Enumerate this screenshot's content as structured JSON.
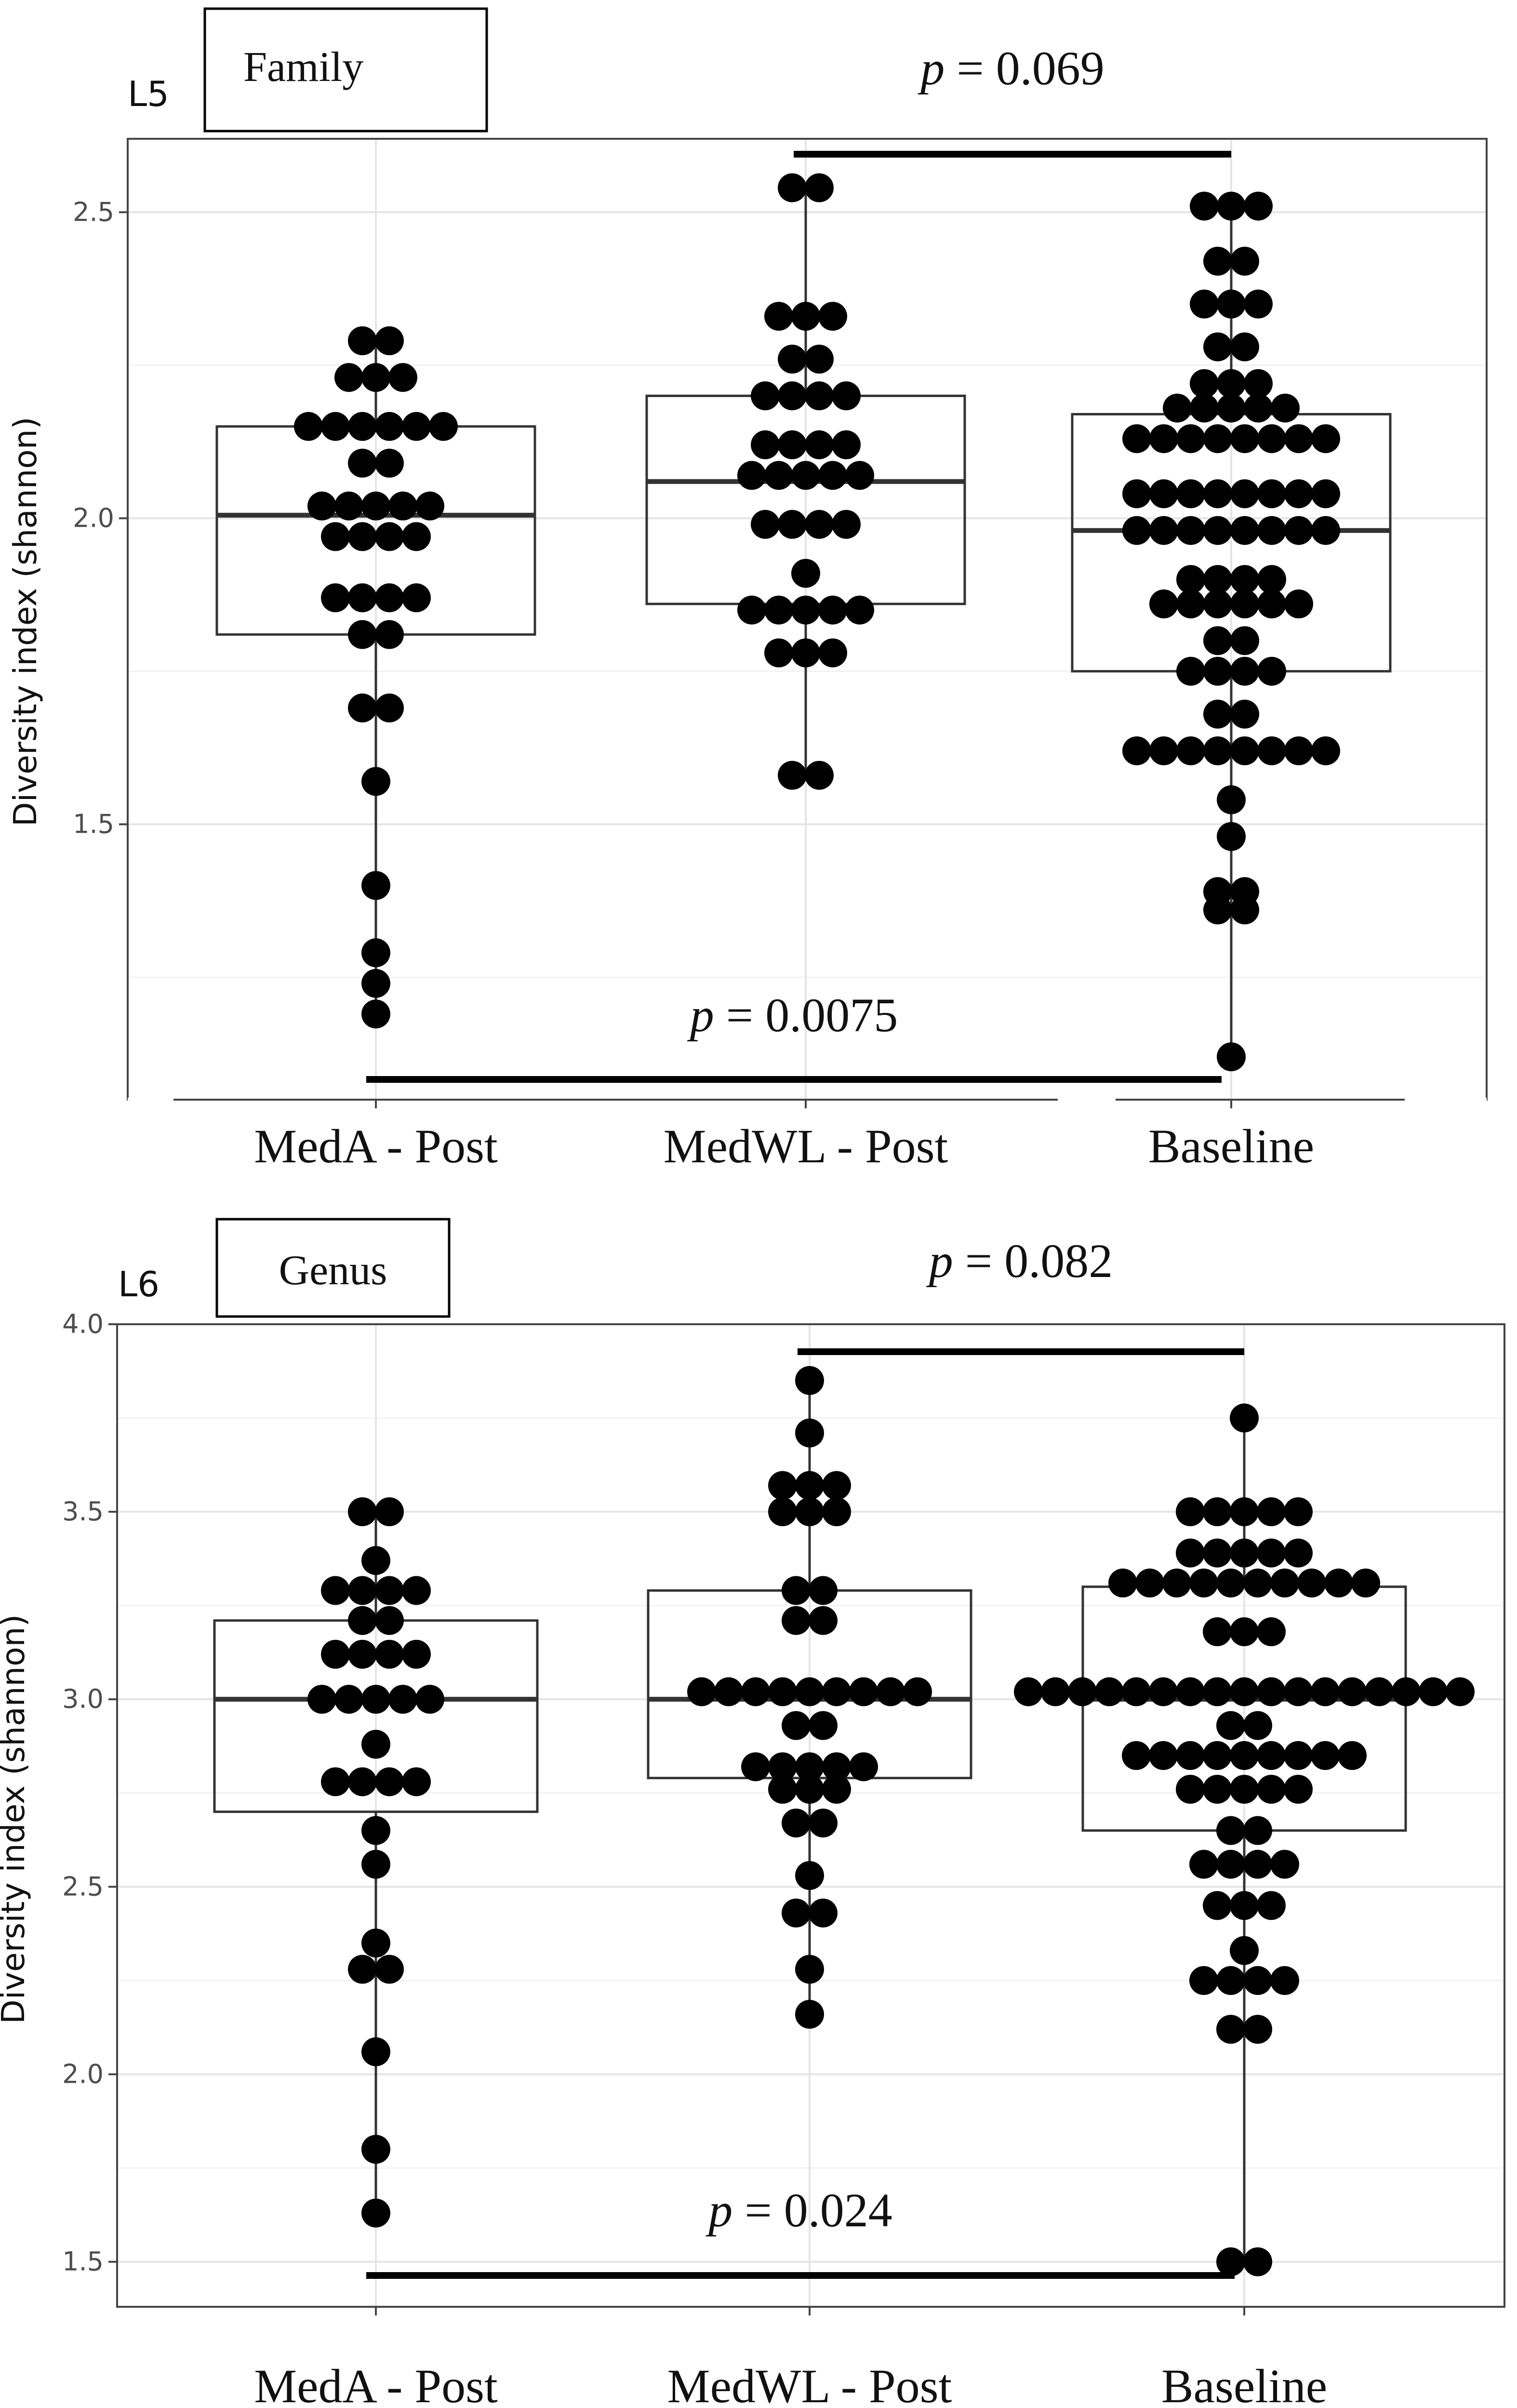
{
  "figure": {
    "panels": [
      {
        "id": "L5",
        "panel_label": "L5",
        "taxon_label": "Family",
        "ylabel": "Diversity index (shannon)",
        "categories": [
          "MedA - Post",
          "MedWL - Post",
          "Baseline"
        ],
        "ylim": [
          1.05,
          2.62
        ],
        "yticks": [
          1.5,
          2.0,
          2.5
        ],
        "ytick_labels": [
          "1.5",
          "2.0",
          "2.5"
        ],
        "grid_major": [
          1.5,
          2.0,
          2.5
        ],
        "grid_minor": [
          1.25,
          1.75,
          2.25
        ],
        "boxes": [
          {
            "category": "MedA - Post",
            "q1": 1.81,
            "median": 2.005,
            "q3": 2.15,
            "whisker_low": 1.19,
            "whisker_high": 2.29
          },
          {
            "category": "MedWL - Post",
            "q1": 1.86,
            "median": 2.06,
            "q3": 2.2,
            "whisker_low": 1.58,
            "whisker_high": 2.54
          },
          {
            "category": "Baseline",
            "q1": 1.75,
            "median": 1.98,
            "q3": 2.17,
            "whisker_low": 1.12,
            "whisker_high": 2.51
          }
        ],
        "points": [
          [
            1.19,
            1.24,
            1.29,
            1.4,
            1.57,
            1.69,
            1.69,
            1.81,
            1.81,
            1.87,
            1.87,
            1.87,
            1.87,
            1.97,
            1.97,
            1.97,
            1.97,
            2.02,
            2.02,
            2.02,
            2.02,
            2.02,
            2.09,
            2.09,
            2.15,
            2.15,
            2.15,
            2.15,
            2.15,
            2.15,
            2.23,
            2.23,
            2.23,
            2.29,
            2.29
          ],
          [
            1.58,
            1.58,
            1.78,
            1.78,
            1.78,
            1.85,
            1.85,
            1.85,
            1.85,
            1.85,
            1.91,
            1.99,
            1.99,
            1.99,
            1.99,
            2.07,
            2.07,
            2.07,
            2.07,
            2.07,
            2.12,
            2.12,
            2.12,
            2.12,
            2.2,
            2.2,
            2.2,
            2.2,
            2.26,
            2.26,
            2.33,
            2.33,
            2.33,
            2.54,
            2.54
          ],
          [
            1.12,
            1.36,
            1.36,
            1.39,
            1.39,
            1.48,
            1.54,
            1.62,
            1.62,
            1.62,
            1.62,
            1.62,
            1.62,
            1.62,
            1.62,
            1.68,
            1.68,
            1.75,
            1.75,
            1.75,
            1.75,
            1.8,
            1.8,
            1.86,
            1.86,
            1.86,
            1.86,
            1.86,
            1.86,
            1.9,
            1.9,
            1.9,
            1.9,
            1.98,
            1.98,
            1.98,
            1.98,
            1.98,
            1.98,
            1.98,
            1.98,
            2.04,
            2.04,
            2.04,
            2.04,
            2.04,
            2.04,
            2.04,
            2.04,
            2.13,
            2.13,
            2.13,
            2.13,
            2.13,
            2.13,
            2.13,
            2.13,
            2.18,
            2.18,
            2.18,
            2.18,
            2.18,
            2.22,
            2.22,
            2.22,
            2.28,
            2.28,
            2.35,
            2.35,
            2.35,
            2.42,
            2.42,
            2.51,
            2.51,
            2.51
          ]
        ],
        "comparisons": [
          {
            "label_italic": "p",
            "label_rest": " = 0.069",
            "from": 1,
            "to": 2,
            "position": "top"
          },
          {
            "label_italic": "p",
            "label_rest": " = 0.0075",
            "from": 0,
            "to": 2,
            "position": "bottom"
          }
        ]
      },
      {
        "id": "L6",
        "panel_label": "L6",
        "taxon_label": "Genus",
        "ylabel": "Diversity index (shannon)",
        "categories": [
          "MedA - Post",
          "MedWL - Post",
          "Baseline"
        ],
        "ylim": [
          1.38,
          4.0
        ],
        "yticks": [
          1.5,
          2.0,
          2.5,
          3.0,
          3.5,
          4.0
        ],
        "ytick_labels": [
          "1.5",
          "2.0",
          "2.5",
          "3.0",
          "3.5",
          "4.0"
        ],
        "grid_major": [
          1.5,
          2.0,
          2.5,
          3.0,
          3.5,
          4.0
        ],
        "grid_minor": [
          1.75,
          2.25,
          2.75,
          3.25,
          3.75
        ],
        "boxes": [
          {
            "category": "MedA - Post",
            "q1": 2.7,
            "median": 3.0,
            "q3": 3.21,
            "whisker_low": 1.63,
            "whisker_high": 3.5
          },
          {
            "category": "MedWL - Post",
            "q1": 2.79,
            "median": 3.0,
            "q3": 3.29,
            "whisker_low": 2.16,
            "whisker_high": 3.85
          },
          {
            "category": "Baseline",
            "q1": 2.65,
            "median": 3.0,
            "q3": 3.3,
            "whisker_low": 1.5,
            "whisker_high": 3.75
          }
        ],
        "points": [
          [
            1.63,
            1.8,
            2.06,
            2.28,
            2.28,
            2.35,
            2.56,
            2.65,
            2.78,
            2.78,
            2.78,
            2.78,
            2.88,
            3.0,
            3.0,
            3.0,
            3.0,
            3.0,
            3.12,
            3.12,
            3.12,
            3.12,
            3.21,
            3.21,
            3.29,
            3.29,
            3.29,
            3.29,
            3.37,
            3.5,
            3.5
          ],
          [
            2.16,
            2.28,
            2.43,
            2.43,
            2.53,
            2.67,
            2.67,
            2.76,
            2.76,
            2.76,
            2.82,
            2.82,
            2.82,
            2.82,
            2.82,
            2.93,
            2.93,
            3.02,
            3.02,
            3.02,
            3.02,
            3.02,
            3.02,
            3.02,
            3.02,
            3.02,
            3.21,
            3.21,
            3.29,
            3.29,
            3.5,
            3.5,
            3.5,
            3.57,
            3.57,
            3.57,
            3.71,
            3.85
          ],
          [
            1.5,
            1.5,
            2.12,
            2.12,
            2.25,
            2.25,
            2.25,
            2.25,
            2.33,
            2.45,
            2.45,
            2.45,
            2.56,
            2.56,
            2.56,
            2.56,
            2.65,
            2.65,
            2.76,
            2.76,
            2.76,
            2.76,
            2.76,
            2.85,
            2.85,
            2.85,
            2.85,
            2.85,
            2.85,
            2.85,
            2.85,
            2.85,
            2.93,
            2.93,
            3.02,
            3.02,
            3.02,
            3.02,
            3.02,
            3.02,
            3.02,
            3.02,
            3.02,
            3.02,
            3.02,
            3.02,
            3.02,
            3.02,
            3.02,
            3.02,
            3.02,
            3.18,
            3.18,
            3.18,
            3.31,
            3.31,
            3.31,
            3.31,
            3.31,
            3.31,
            3.31,
            3.31,
            3.31,
            3.31,
            3.39,
            3.39,
            3.39,
            3.39,
            3.39,
            3.5,
            3.5,
            3.5,
            3.5,
            3.5,
            3.75
          ]
        ],
        "comparisons": [
          {
            "label_italic": "p",
            "label_rest": " = 0.082",
            "from": 1,
            "to": 2,
            "position": "top"
          },
          {
            "label_italic": "p",
            "label_rest": " = 0.024",
            "from": 0,
            "to": 2,
            "position": "bottom"
          }
        ]
      }
    ]
  },
  "chart_data": [
    {
      "type": "box",
      "panel": "L5",
      "title": "Family",
      "xlabel": "",
      "ylabel": "Diversity index (shannon)",
      "categories": [
        "MedA - Post",
        "MedWL - Post",
        "Baseline"
      ],
      "ylim": [
        1.05,
        2.62
      ],
      "median": [
        2.005,
        2.06,
        1.98
      ],
      "q1": [
        1.81,
        1.86,
        1.75
      ],
      "q3": [
        2.15,
        2.2,
        2.17
      ],
      "min": [
        1.19,
        1.58,
        1.12
      ],
      "max": [
        2.29,
        2.54,
        2.51
      ],
      "annotations": [
        "p = 0.069 (MedWL - Post vs Baseline)",
        "p = 0.0075 (MedA - Post vs Baseline)"
      ]
    },
    {
      "type": "box",
      "panel": "L6",
      "title": "Genus",
      "xlabel": "",
      "ylabel": "Diversity index (shannon)",
      "categories": [
        "MedA - Post",
        "MedWL - Post",
        "Baseline"
      ],
      "ylim": [
        1.38,
        4.0
      ],
      "median": [
        3.0,
        3.0,
        3.0
      ],
      "q1": [
        2.7,
        2.79,
        2.65
      ],
      "q3": [
        3.21,
        3.29,
        3.3
      ],
      "min": [
        1.63,
        2.16,
        1.5
      ],
      "max": [
        3.5,
        3.85,
        3.75
      ],
      "annotations": [
        "p = 0.082 (MedWL - Post vs Baseline)",
        "p = 0.024 (MedA - Post vs Baseline)"
      ]
    }
  ]
}
